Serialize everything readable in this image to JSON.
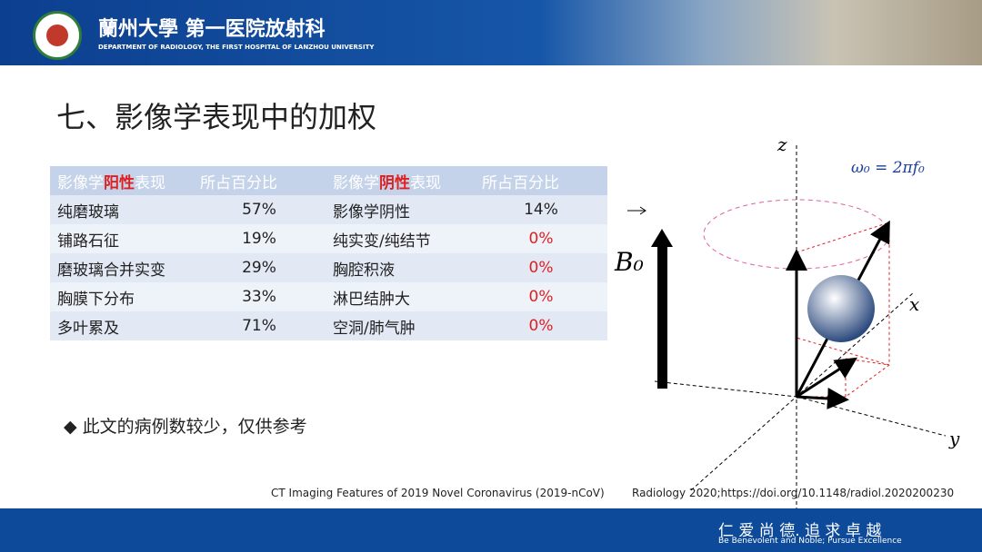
{
  "header": {
    "title": "蘭州大學 第一医院放射科",
    "subtitle": "DEPARTMENT OF RADIOLOGY, THE FIRST HOSPITAL OF LANZHOU UNIVERSITY"
  },
  "slide_title": "七、影像学表现中的加权",
  "table": {
    "header": [
      [
        "影像学",
        "阳性",
        "表现"
      ],
      "所占百分比",
      [
        "影像学",
        "阴性",
        "表现"
      ],
      "所占百分比"
    ],
    "rows": [
      [
        "纯磨玻璃",
        "57%",
        "影像学阴性",
        "14%"
      ],
      [
        "铺路石征",
        "19%",
        "纯实变/纯结节",
        "0%"
      ],
      [
        "磨玻璃合并实变",
        "29%",
        "胸腔积液",
        "0%"
      ],
      [
        "胸膜下分布",
        "33%",
        "淋巴结肿大",
        "0%"
      ],
      [
        "多叶累及",
        "71%",
        "空洞/肺气肿",
        "0%"
      ]
    ]
  },
  "bullet": "此文的病例数较少，仅供参考",
  "citation": [
    "CT Imaging Features of 2019 Novel Coronavirus (2019-nCoV)",
    "Radiology 2020;https://doi.org/10.1148/radiol.2020200230"
  ],
  "diagram": {
    "z": "z",
    "x": "x",
    "y": "y",
    "omega": "ω₀ = 2πf₀",
    "field": "B₀"
  },
  "footer": {
    "motto": "仁 爱 尚 德. 追 求 卓 越",
    "motto_en": "Be Benevolent and Noble; Pursue Excellence"
  }
}
